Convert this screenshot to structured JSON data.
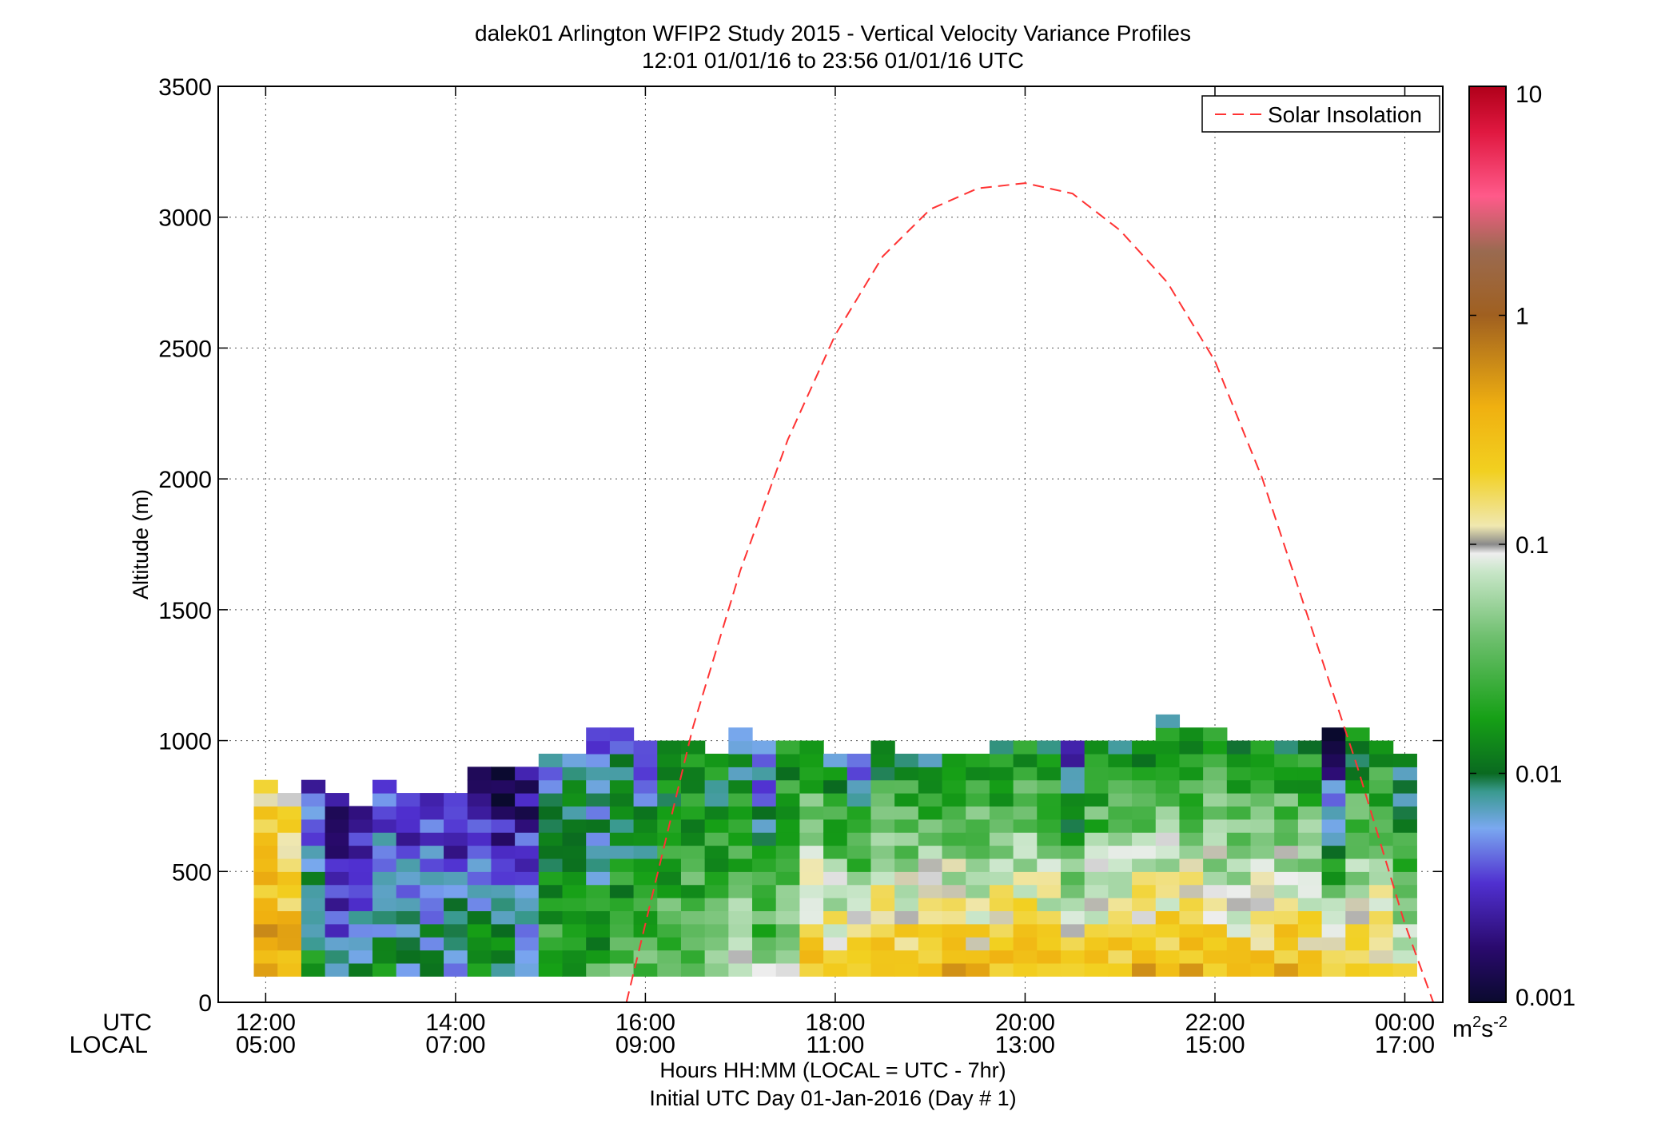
{
  "chart_data": {
    "type": "heatmap",
    "title": "dalek01 Arlington WFIP2 Study 2015 - Vertical Velocity Variance Profiles",
    "subtitle": "12:01 01/01/16 to 23:56 01/01/16  UTC",
    "ylabel": "Altitude (m)",
    "xlabel": "Hours HH:MM  (LOCAL = UTC - 7hr)",
    "xlabel2": "Initial UTC Day 01-Jan-2016 (Day # 1)",
    "row_labels": {
      "utc": "UTC",
      "local": "LOCAL"
    },
    "ylim": [
      0,
      3500
    ],
    "yticks": [
      "0",
      "500",
      "1000",
      "1500",
      "2000",
      "2500",
      "3000",
      "3500"
    ],
    "xlim_utc_hours": [
      11.5,
      24.4
    ],
    "xticks": [
      {
        "utc": "12:00",
        "local": "05:00"
      },
      {
        "utc": "14:00",
        "local": "07:00"
      },
      {
        "utc": "16:00",
        "local": "09:00"
      },
      {
        "utc": "18:00",
        "local": "11:00"
      },
      {
        "utc": "20:00",
        "local": "13:00"
      },
      {
        "utc": "22:00",
        "local": "15:00"
      },
      {
        "utc": "00:00",
        "local": "17:00"
      }
    ],
    "grid": true,
    "legend": {
      "placement": "top-right",
      "entries": [
        "Solar Insolation"
      ]
    },
    "colorbar": {
      "scale": "log",
      "range": [
        0.001,
        10
      ],
      "ticks": [
        "10",
        "1",
        "0.1",
        "0.01",
        "0.001"
      ],
      "units": "m²s⁻²"
    },
    "heatmap": {
      "description": "Log10 vertical velocity variance (m^2 s^-2) per time column (UTC hour) and altitude bin; levels approx 100 m to 1000 m",
      "columns": [
        {
          "t": 12.0,
          "top": 850,
          "low": -0.8,
          "high": -0.4
        },
        {
          "t": 12.25,
          "top": 800,
          "low": -1.0,
          "high": -0.4
        },
        {
          "t": 12.5,
          "top": 850,
          "low": -2.6,
          "high": -1.8
        },
        {
          "t": 12.75,
          "top": 800,
          "low": -2.9,
          "high": -2.2
        },
        {
          "t": 13.0,
          "top": 750,
          "low": -2.8,
          "high": -1.9
        },
        {
          "t": 13.25,
          "top": 850,
          "low": -2.6,
          "high": -1.9
        },
        {
          "t": 13.5,
          "top": 800,
          "low": -2.7,
          "high": -2.0
        },
        {
          "t": 13.75,
          "top": 800,
          "low": -2.6,
          "high": -2.0
        },
        {
          "t": 14.0,
          "top": 800,
          "low": -2.6,
          "high": -2.1
        },
        {
          "t": 14.25,
          "top": 900,
          "low": -2.8,
          "high": -1.8
        },
        {
          "t": 14.5,
          "top": 900,
          "low": -3.0,
          "high": -1.9
        },
        {
          "t": 14.75,
          "top": 900,
          "low": -2.9,
          "high": -2.0
        },
        {
          "t": 15.0,
          "top": 950,
          "low": -2.3,
          "high": -1.6
        },
        {
          "t": 15.25,
          "top": 950,
          "low": -2.2,
          "high": -1.6
        },
        {
          "t": 15.5,
          "top": 1050,
          "low": -2.6,
          "high": -1.6
        },
        {
          "t": 15.75,
          "top": 1050,
          "low": -2.3,
          "high": -1.5
        },
        {
          "t": 16.0,
          "top": 1000,
          "low": -2.4,
          "high": -1.5
        },
        {
          "t": 16.25,
          "top": 1000,
          "low": -2.0,
          "high": -1.4
        },
        {
          "t": 16.5,
          "top": 1000,
          "low": -2.0,
          "high": -1.4
        },
        {
          "t": 16.75,
          "top": 950,
          "low": -2.0,
          "high": -1.3
        },
        {
          "t": 17.0,
          "top": 1050,
          "low": -2.1,
          "high": -1.2
        },
        {
          "t": 17.25,
          "top": 1000,
          "low": -2.5,
          "high": -1.3
        },
        {
          "t": 17.5,
          "top": 1000,
          "low": -1.9,
          "high": -1.1
        },
        {
          "t": 17.75,
          "top": 1000,
          "low": -1.8,
          "high": -0.5
        },
        {
          "t": 18.0,
          "top": 950,
          "low": -2.2,
          "high": -0.6
        },
        {
          "t": 18.25,
          "top": 950,
          "low": -2.5,
          "high": -0.5
        },
        {
          "t": 18.5,
          "top": 1000,
          "low": -2.1,
          "high": -0.5
        },
        {
          "t": 18.75,
          "top": 950,
          "low": -2.0,
          "high": -0.5
        },
        {
          "t": 19.0,
          "top": 950,
          "low": -2.0,
          "high": -0.5
        },
        {
          "t": 19.25,
          "top": 950,
          "low": -1.9,
          "high": -0.5
        },
        {
          "t": 19.5,
          "top": 950,
          "low": -2.0,
          "high": -0.5
        },
        {
          "t": 19.75,
          "top": 1000,
          "low": -2.0,
          "high": -0.5
        },
        {
          "t": 20.0,
          "top": 1000,
          "low": -1.9,
          "high": -0.5
        },
        {
          "t": 20.25,
          "top": 1000,
          "low": -2.0,
          "high": -0.6
        },
        {
          "t": 20.5,
          "top": 1000,
          "low": -2.6,
          "high": -0.6
        },
        {
          "t": 20.75,
          "top": 1000,
          "low": -2.0,
          "high": -0.7
        },
        {
          "t": 21.0,
          "top": 1000,
          "low": -2.0,
          "high": -0.6
        },
        {
          "t": 21.25,
          "top": 1000,
          "low": -1.9,
          "high": -0.5
        },
        {
          "t": 21.5,
          "top": 1100,
          "low": -2.0,
          "high": -0.5
        },
        {
          "t": 21.75,
          "top": 1050,
          "low": -2.0,
          "high": -0.5
        },
        {
          "t": 22.0,
          "top": 1050,
          "low": -1.9,
          "high": -0.6
        },
        {
          "t": 22.25,
          "top": 1000,
          "low": -1.9,
          "high": -0.6
        },
        {
          "t": 22.5,
          "top": 1000,
          "low": -1.8,
          "high": -0.5
        },
        {
          "t": 22.75,
          "top": 1000,
          "low": -1.9,
          "high": -0.5
        },
        {
          "t": 23.0,
          "top": 1000,
          "low": -1.9,
          "high": -0.6
        },
        {
          "t": 23.25,
          "top": 1050,
          "low": -2.9,
          "high": -0.8
        },
        {
          "t": 23.5,
          "top": 1050,
          "low": -2.0,
          "high": -0.7
        },
        {
          "t": 23.75,
          "top": 1000,
          "low": -1.9,
          "high": -0.7
        },
        {
          "t": 24.0,
          "top": 950,
          "low": -2.2,
          "high": -1.0
        }
      ]
    },
    "series": [
      {
        "name": "Solar Insolation",
        "style": "dashed",
        "color": "#ff3333",
        "x": [
          15.8,
          16.5,
          17.0,
          17.5,
          18.0,
          18.5,
          19.0,
          19.5,
          20.0,
          20.5,
          21.0,
          21.5,
          22.0,
          22.5,
          23.0,
          23.5,
          24.0,
          24.3
        ],
        "y": [
          0,
          1050,
          1650,
          2150,
          2550,
          2850,
          3030,
          3110,
          3130,
          3090,
          2950,
          2750,
          2450,
          2000,
          1450,
          900,
          300,
          0
        ]
      }
    ],
    "colors": {
      "legend_box_border": "#000000",
      "line": "#ff3333"
    }
  }
}
